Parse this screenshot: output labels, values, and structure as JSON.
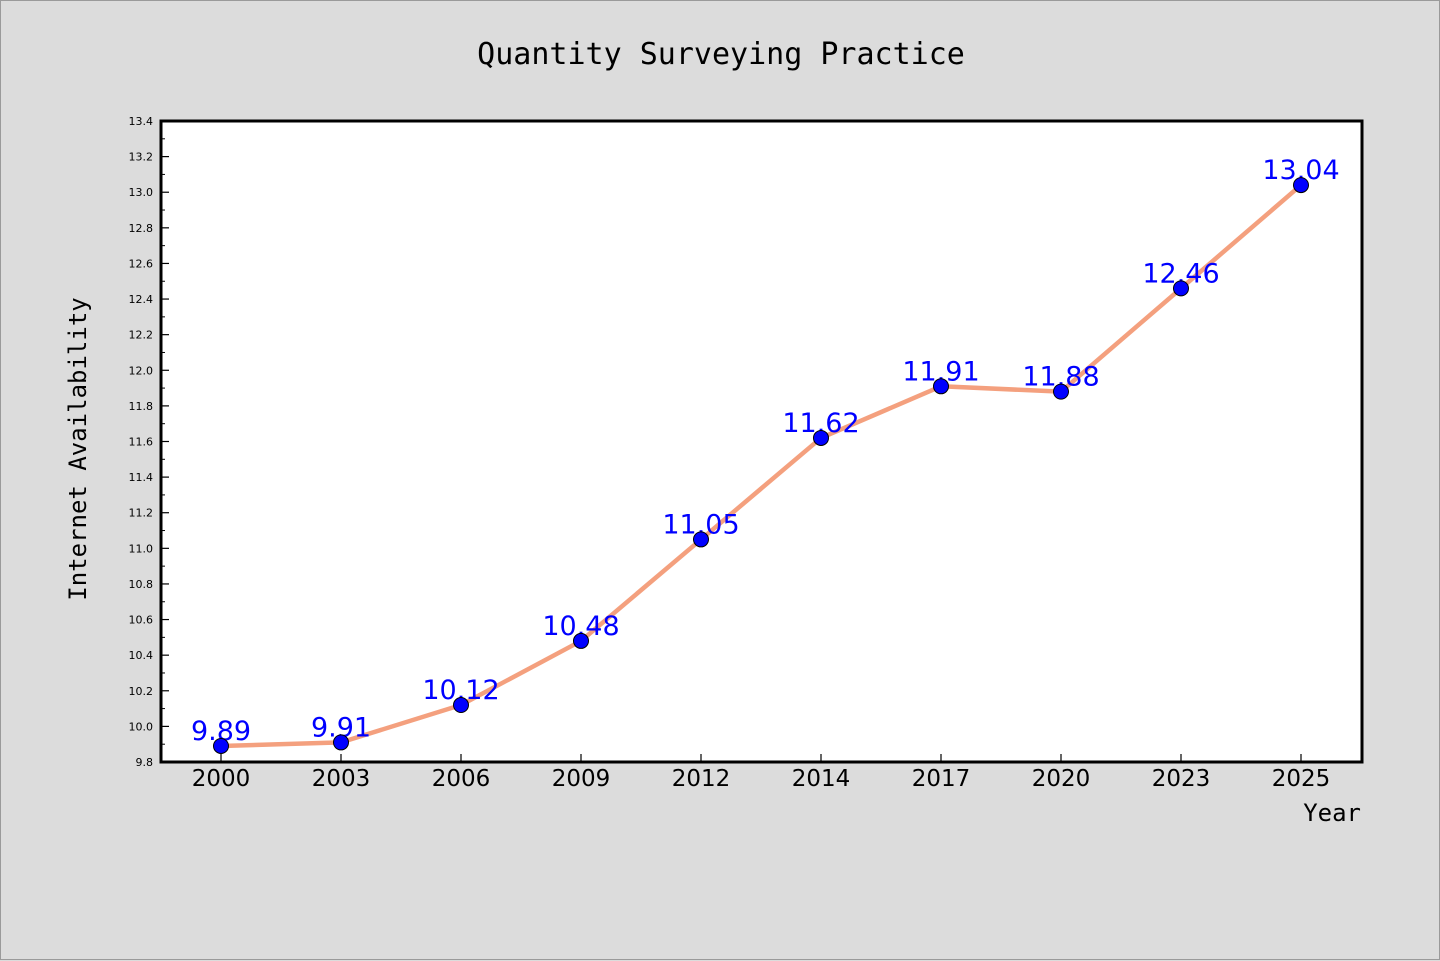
{
  "chart_data": {
    "type": "line",
    "title": "Quantity Surveying Practice",
    "xlabel": "Year",
    "ylabel": "Internet Availability",
    "categories": [
      "2000",
      "2003",
      "2006",
      "2009",
      "2012",
      "2014",
      "2017",
      "2020",
      "2023",
      "2025"
    ],
    "series": [
      {
        "values": [
          9.89,
          9.91,
          10.12,
          10.48,
          11.05,
          11.62,
          11.91,
          11.88,
          12.46,
          13.04
        ],
        "line_color": "#f4a07e",
        "marker_color": "#0000ff",
        "label_color": "#0000ff"
      }
    ],
    "data_labels": [
      "9.89",
      "9.91",
      "10.12",
      "10.48",
      "11.05",
      "11.62",
      "11.91",
      "11.88",
      "12.46",
      "13.04"
    ],
    "ylim": [
      9.8,
      13.4
    ],
    "y_ticks": [
      "9.8",
      "10.0",
      "10.2",
      "10.4",
      "10.6",
      "10.8",
      "11.0",
      "11.2",
      "11.4",
      "11.6",
      "11.8",
      "12.0",
      "12.2",
      "12.4",
      "12.6",
      "12.8",
      "13.0",
      "13.2",
      "13.4"
    ],
    "grid": false,
    "legend": "none",
    "background_color": "#dcdcdc",
    "plot_background_color": "#ffffff"
  }
}
